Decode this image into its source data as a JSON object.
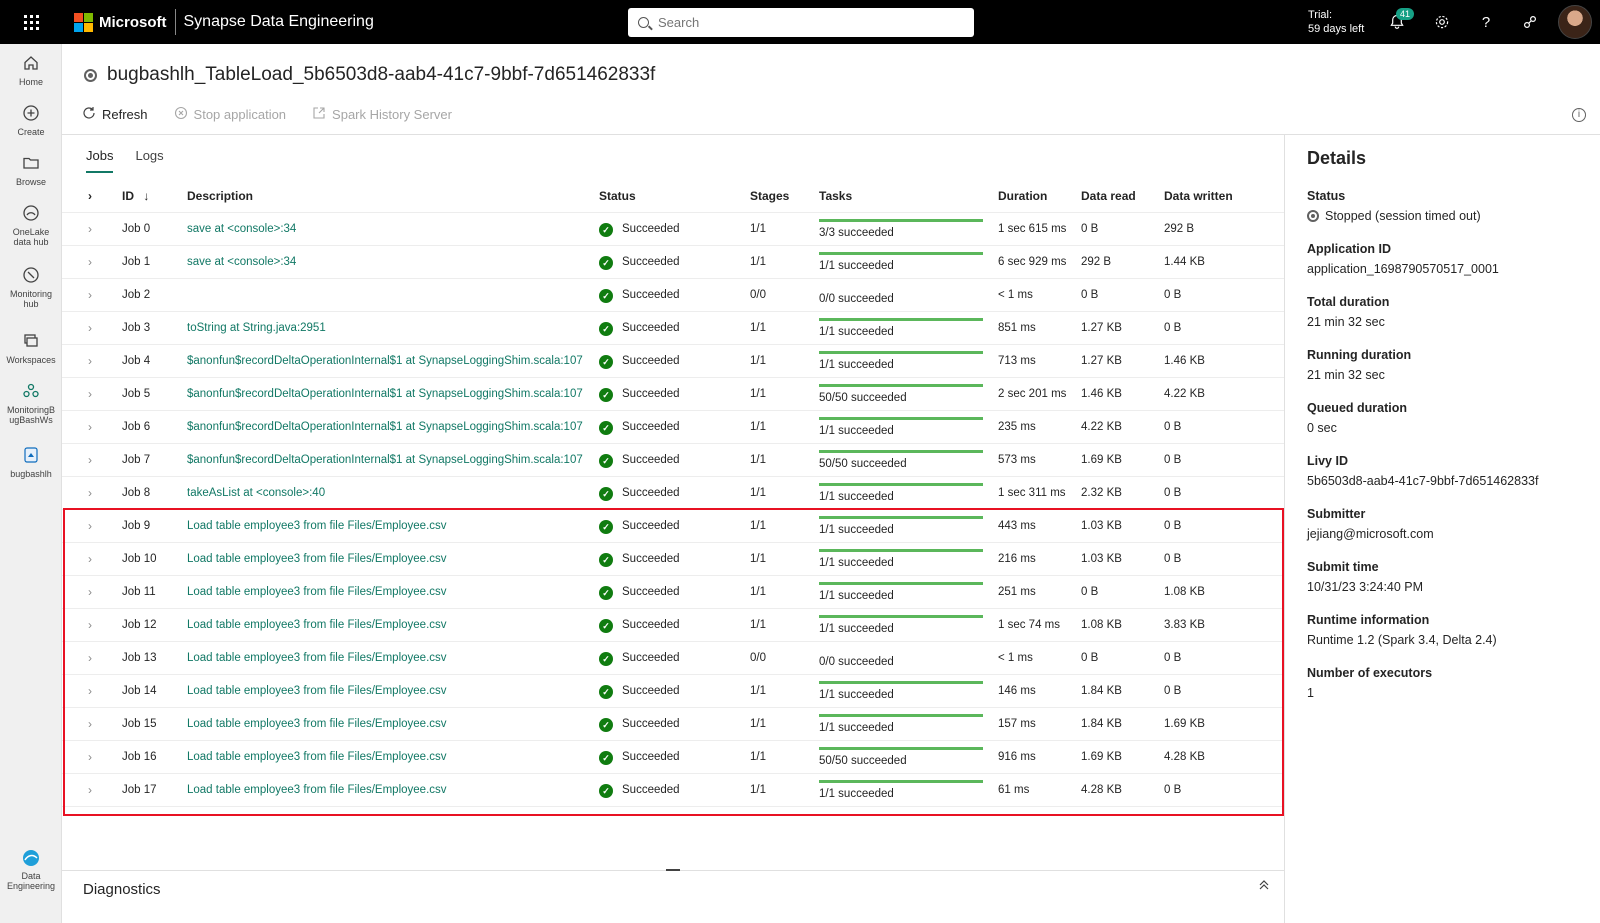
{
  "topbar": {
    "brand": "Microsoft",
    "product": "Synapse Data Engineering",
    "search_placeholder": "Search",
    "trial_line1": "Trial:",
    "trial_line2": "59 days left",
    "notifications_count": "41"
  },
  "nav": [
    {
      "label1": "Home",
      "label2": "",
      "icon": "home-icon"
    },
    {
      "label1": "Create",
      "label2": "",
      "icon": "plus-icon"
    },
    {
      "label1": "Browse",
      "label2": "",
      "icon": "folder-icon"
    },
    {
      "label1": "OneLake",
      "label2": "data hub",
      "icon": "onelake-icon"
    },
    {
      "label1": "Monitoring",
      "label2": "hub",
      "icon": "monitor-icon"
    },
    {
      "label1": "Workspaces",
      "label2": "",
      "icon": "workspaces-icon"
    },
    {
      "label1": "MonitoringB",
      "label2": "ugBashWs",
      "icon": "workspace-item-icon"
    },
    {
      "label1": "bugbashlh",
      "label2": "",
      "icon": "lakehouse-icon"
    },
    {
      "label1": "Data",
      "label2": "Engineering",
      "icon": "data-engineering-icon"
    }
  ],
  "page": {
    "title": "bugbashlh_TableLoad_5b6503d8-aab4-41c7-9bbf-7d651462833f",
    "refresh_label": "Refresh",
    "stop_label": "Stop application",
    "history_label": "Spark History Server",
    "tabs": [
      "Jobs",
      "Logs"
    ]
  },
  "table": {
    "headers": {
      "id": "ID",
      "description": "Description",
      "status": "Status",
      "stages": "Stages",
      "tasks": "Tasks",
      "duration": "Duration",
      "data_read": "Data read",
      "data_written": "Data written"
    },
    "rows": [
      {
        "id": "Job 0",
        "desc": "save at <console>:34",
        "status": "Succeeded",
        "stages": "1/1",
        "tasks": "3/3 succeeded",
        "progress": 1,
        "duration": "1 sec 615 ms",
        "read": "0 B",
        "written": "292 B"
      },
      {
        "id": "Job 1",
        "desc": "save at <console>:34",
        "status": "Succeeded",
        "stages": "1/1",
        "tasks": "1/1 succeeded",
        "progress": 1,
        "duration": "6 sec 929 ms",
        "read": "292 B",
        "written": "1.44 KB"
      },
      {
        "id": "Job 2",
        "desc": "",
        "status": "Succeeded",
        "stages": "0/0",
        "tasks": "0/0 succeeded",
        "progress": 0,
        "duration": "< 1 ms",
        "read": "0 B",
        "written": "0 B"
      },
      {
        "id": "Job 3",
        "desc": "toString at String.java:2951",
        "status": "Succeeded",
        "stages": "1/1",
        "tasks": "1/1 succeeded",
        "progress": 1,
        "duration": "851 ms",
        "read": "1.27 KB",
        "written": "0 B"
      },
      {
        "id": "Job 4",
        "desc": "$anonfun$recordDeltaOperationInternal$1 at SynapseLoggingShim.scala:107",
        "status": "Succeeded",
        "stages": "1/1",
        "tasks": "1/1 succeeded",
        "progress": 1,
        "duration": "713 ms",
        "read": "1.27 KB",
        "written": "1.46 KB"
      },
      {
        "id": "Job 5",
        "desc": "$anonfun$recordDeltaOperationInternal$1 at SynapseLoggingShim.scala:107",
        "status": "Succeeded",
        "stages": "1/1",
        "tasks": "50/50 succeeded",
        "progress": 1,
        "duration": "2 sec 201 ms",
        "read": "1.46 KB",
        "written": "4.22 KB"
      },
      {
        "id": "Job 6",
        "desc": "$anonfun$recordDeltaOperationInternal$1 at SynapseLoggingShim.scala:107",
        "status": "Succeeded",
        "stages": "1/1",
        "tasks": "1/1 succeeded",
        "progress": 1,
        "duration": "235 ms",
        "read": "4.22 KB",
        "written": "0 B"
      },
      {
        "id": "Job 7",
        "desc": "$anonfun$recordDeltaOperationInternal$1 at SynapseLoggingShim.scala:107",
        "status": "Succeeded",
        "stages": "1/1",
        "tasks": "50/50 succeeded",
        "progress": 1,
        "duration": "573 ms",
        "read": "1.69 KB",
        "written": "0 B"
      },
      {
        "id": "Job 8",
        "desc": "takeAsList at <console>:40",
        "status": "Succeeded",
        "stages": "1/1",
        "tasks": "1/1 succeeded",
        "progress": 1,
        "duration": "1 sec 311 ms",
        "read": "2.32 KB",
        "written": "0 B"
      },
      {
        "id": "Job 9",
        "desc": "Load table employee3 from file Files/Employee.csv",
        "status": "Succeeded",
        "stages": "1/1",
        "tasks": "1/1 succeeded",
        "progress": 1,
        "duration": "443 ms",
        "read": "1.03 KB",
        "written": "0 B"
      },
      {
        "id": "Job 10",
        "desc": "Load table employee3 from file Files/Employee.csv",
        "status": "Succeeded",
        "stages": "1/1",
        "tasks": "1/1 succeeded",
        "progress": 1,
        "duration": "216 ms",
        "read": "1.03 KB",
        "written": "0 B"
      },
      {
        "id": "Job 11",
        "desc": "Load table employee3 from file Files/Employee.csv",
        "status": "Succeeded",
        "stages": "1/1",
        "tasks": "1/1 succeeded",
        "progress": 1,
        "duration": "251 ms",
        "read": "0 B",
        "written": "1.08 KB"
      },
      {
        "id": "Job 12",
        "desc": "Load table employee3 from file Files/Employee.csv",
        "status": "Succeeded",
        "stages": "1/1",
        "tasks": "1/1 succeeded",
        "progress": 1,
        "duration": "1 sec 74 ms",
        "read": "1.08 KB",
        "written": "3.83 KB"
      },
      {
        "id": "Job 13",
        "desc": "Load table employee3 from file Files/Employee.csv",
        "status": "Succeeded",
        "stages": "0/0",
        "tasks": "0/0 succeeded",
        "progress": 0,
        "duration": "< 1 ms",
        "read": "0 B",
        "written": "0 B"
      },
      {
        "id": "Job 14",
        "desc": "Load table employee3 from file Files/Employee.csv",
        "status": "Succeeded",
        "stages": "1/1",
        "tasks": "1/1 succeeded",
        "progress": 1,
        "duration": "146 ms",
        "read": "1.84 KB",
        "written": "0 B"
      },
      {
        "id": "Job 15",
        "desc": "Load table employee3 from file Files/Employee.csv",
        "status": "Succeeded",
        "stages": "1/1",
        "tasks": "1/1 succeeded",
        "progress": 1,
        "duration": "157 ms",
        "read": "1.84 KB",
        "written": "1.69 KB"
      },
      {
        "id": "Job 16",
        "desc": "Load table employee3 from file Files/Employee.csv",
        "status": "Succeeded",
        "stages": "1/1",
        "tasks": "50/50 succeeded",
        "progress": 1,
        "duration": "916 ms",
        "read": "1.69 KB",
        "written": "4.28 KB"
      },
      {
        "id": "Job 17",
        "desc": "Load table employee3 from file Files/Employee.csv",
        "status": "Succeeded",
        "stages": "1/1",
        "tasks": "1/1 succeeded",
        "progress": 1,
        "duration": "61 ms",
        "read": "4.28 KB",
        "written": "0 B"
      }
    ]
  },
  "details": {
    "title": "Details",
    "items": [
      {
        "label": "Status",
        "value": "Stopped (session timed out)"
      },
      {
        "label": "Application ID",
        "value": "application_1698790570517_0001"
      },
      {
        "label": "Total duration",
        "value": "21 min 32 sec"
      },
      {
        "label": "Running duration",
        "value": "21 min 32 sec"
      },
      {
        "label": "Queued duration",
        "value": "0 sec"
      },
      {
        "label": "Livy ID",
        "value": "5b6503d8-aab4-41c7-9bbf-7d651462833f"
      },
      {
        "label": "Submitter",
        "value": "jejiang@microsoft.com"
      },
      {
        "label": "Submit time",
        "value": "10/31/23 3:24:40 PM"
      },
      {
        "label": "Runtime information",
        "value": "Runtime 1.2 (Spark 3.4, Delta 2.4)"
      },
      {
        "label": "Number of executors",
        "value": "1"
      }
    ]
  },
  "diagnostics": {
    "title": "Diagnostics"
  },
  "colors": {
    "accent": "#117865",
    "success": "#107c10",
    "highlight": "#e81123"
  }
}
